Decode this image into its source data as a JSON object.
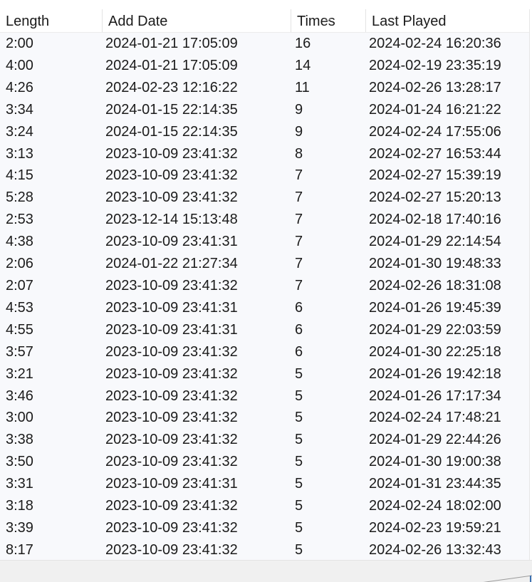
{
  "columns": {
    "length": "Length",
    "add_date": "Add Date",
    "times": "Times",
    "last_played": "Last Played"
  },
  "sort": {
    "column": "Times",
    "direction": "descending",
    "icon": "chevron-down-icon"
  },
  "rows": [
    {
      "length": "2:00",
      "add_date": "2024-01-21 17:05:09",
      "times": "16",
      "last_played": "2024-02-24 16:20:36"
    },
    {
      "length": "4:00",
      "add_date": "2024-01-21 17:05:09",
      "times": "14",
      "last_played": "2024-02-19 23:35:19"
    },
    {
      "length": "4:26",
      "add_date": "2024-02-23 12:16:22",
      "times": "11",
      "last_played": "2024-02-26 13:28:17"
    },
    {
      "length": "3:34",
      "add_date": "2024-01-15 22:14:35",
      "times": "9",
      "last_played": "2024-01-24 16:21:22"
    },
    {
      "length": "3:24",
      "add_date": "2024-01-15 22:14:35",
      "times": "9",
      "last_played": "2024-02-24 17:55:06"
    },
    {
      "length": "3:13",
      "add_date": "2023-10-09 23:41:32",
      "times": "8",
      "last_played": "2024-02-27 16:53:44"
    },
    {
      "length": "4:15",
      "add_date": "2023-10-09 23:41:32",
      "times": "7",
      "last_played": "2024-02-27 15:39:19"
    },
    {
      "length": "5:28",
      "add_date": "2023-10-09 23:41:32",
      "times": "7",
      "last_played": "2024-02-27 15:20:13"
    },
    {
      "length": "2:53",
      "add_date": "2023-12-14 15:13:48",
      "times": "7",
      "last_played": "2024-02-18 17:40:16"
    },
    {
      "length": "4:38",
      "add_date": "2023-10-09 23:41:31",
      "times": "7",
      "last_played": "2024-01-29 22:14:54"
    },
    {
      "length": "2:06",
      "add_date": "2024-01-22 21:27:34",
      "times": "7",
      "last_played": "2024-01-30 19:48:33"
    },
    {
      "length": "2:07",
      "add_date": "2023-10-09 23:41:32",
      "times": "7",
      "last_played": "2024-02-26 18:31:08"
    },
    {
      "length": "4:53",
      "add_date": "2023-10-09 23:41:31",
      "times": "6",
      "last_played": "2024-01-26 19:45:39"
    },
    {
      "length": "4:55",
      "add_date": "2023-10-09 23:41:31",
      "times": "6",
      "last_played": "2024-01-29 22:03:59"
    },
    {
      "length": "3:57",
      "add_date": "2023-10-09 23:41:32",
      "times": "6",
      "last_played": "2024-01-30 22:25:18"
    },
    {
      "length": "3:21",
      "add_date": "2023-10-09 23:41:32",
      "times": "5",
      "last_played": "2024-01-26 19:42:18"
    },
    {
      "length": "3:46",
      "add_date": "2023-10-09 23:41:32",
      "times": "5",
      "last_played": "2024-01-26 17:17:34"
    },
    {
      "length": "3:00",
      "add_date": "2023-10-09 23:41:32",
      "times": "5",
      "last_played": "2024-02-24 17:48:21"
    },
    {
      "length": "3:38",
      "add_date": "2023-10-09 23:41:32",
      "times": "5",
      "last_played": "2024-01-29 22:44:26"
    },
    {
      "length": "3:50",
      "add_date": "2023-10-09 23:41:32",
      "times": "5",
      "last_played": "2024-01-30 19:00:38"
    },
    {
      "length": "3:31",
      "add_date": "2023-10-09 23:41:31",
      "times": "5",
      "last_played": "2024-01-31 23:44:35"
    },
    {
      "length": "3:18",
      "add_date": "2023-10-09 23:41:32",
      "times": "5",
      "last_played": "2024-02-24 18:02:00"
    },
    {
      "length": "3:39",
      "add_date": "2023-10-09 23:41:32",
      "times": "5",
      "last_played": "2024-02-23 19:59:21"
    },
    {
      "length": "8:17",
      "add_date": "2023-10-09 23:41:32",
      "times": "5",
      "last_played": "2024-02-26 13:32:43"
    }
  ]
}
